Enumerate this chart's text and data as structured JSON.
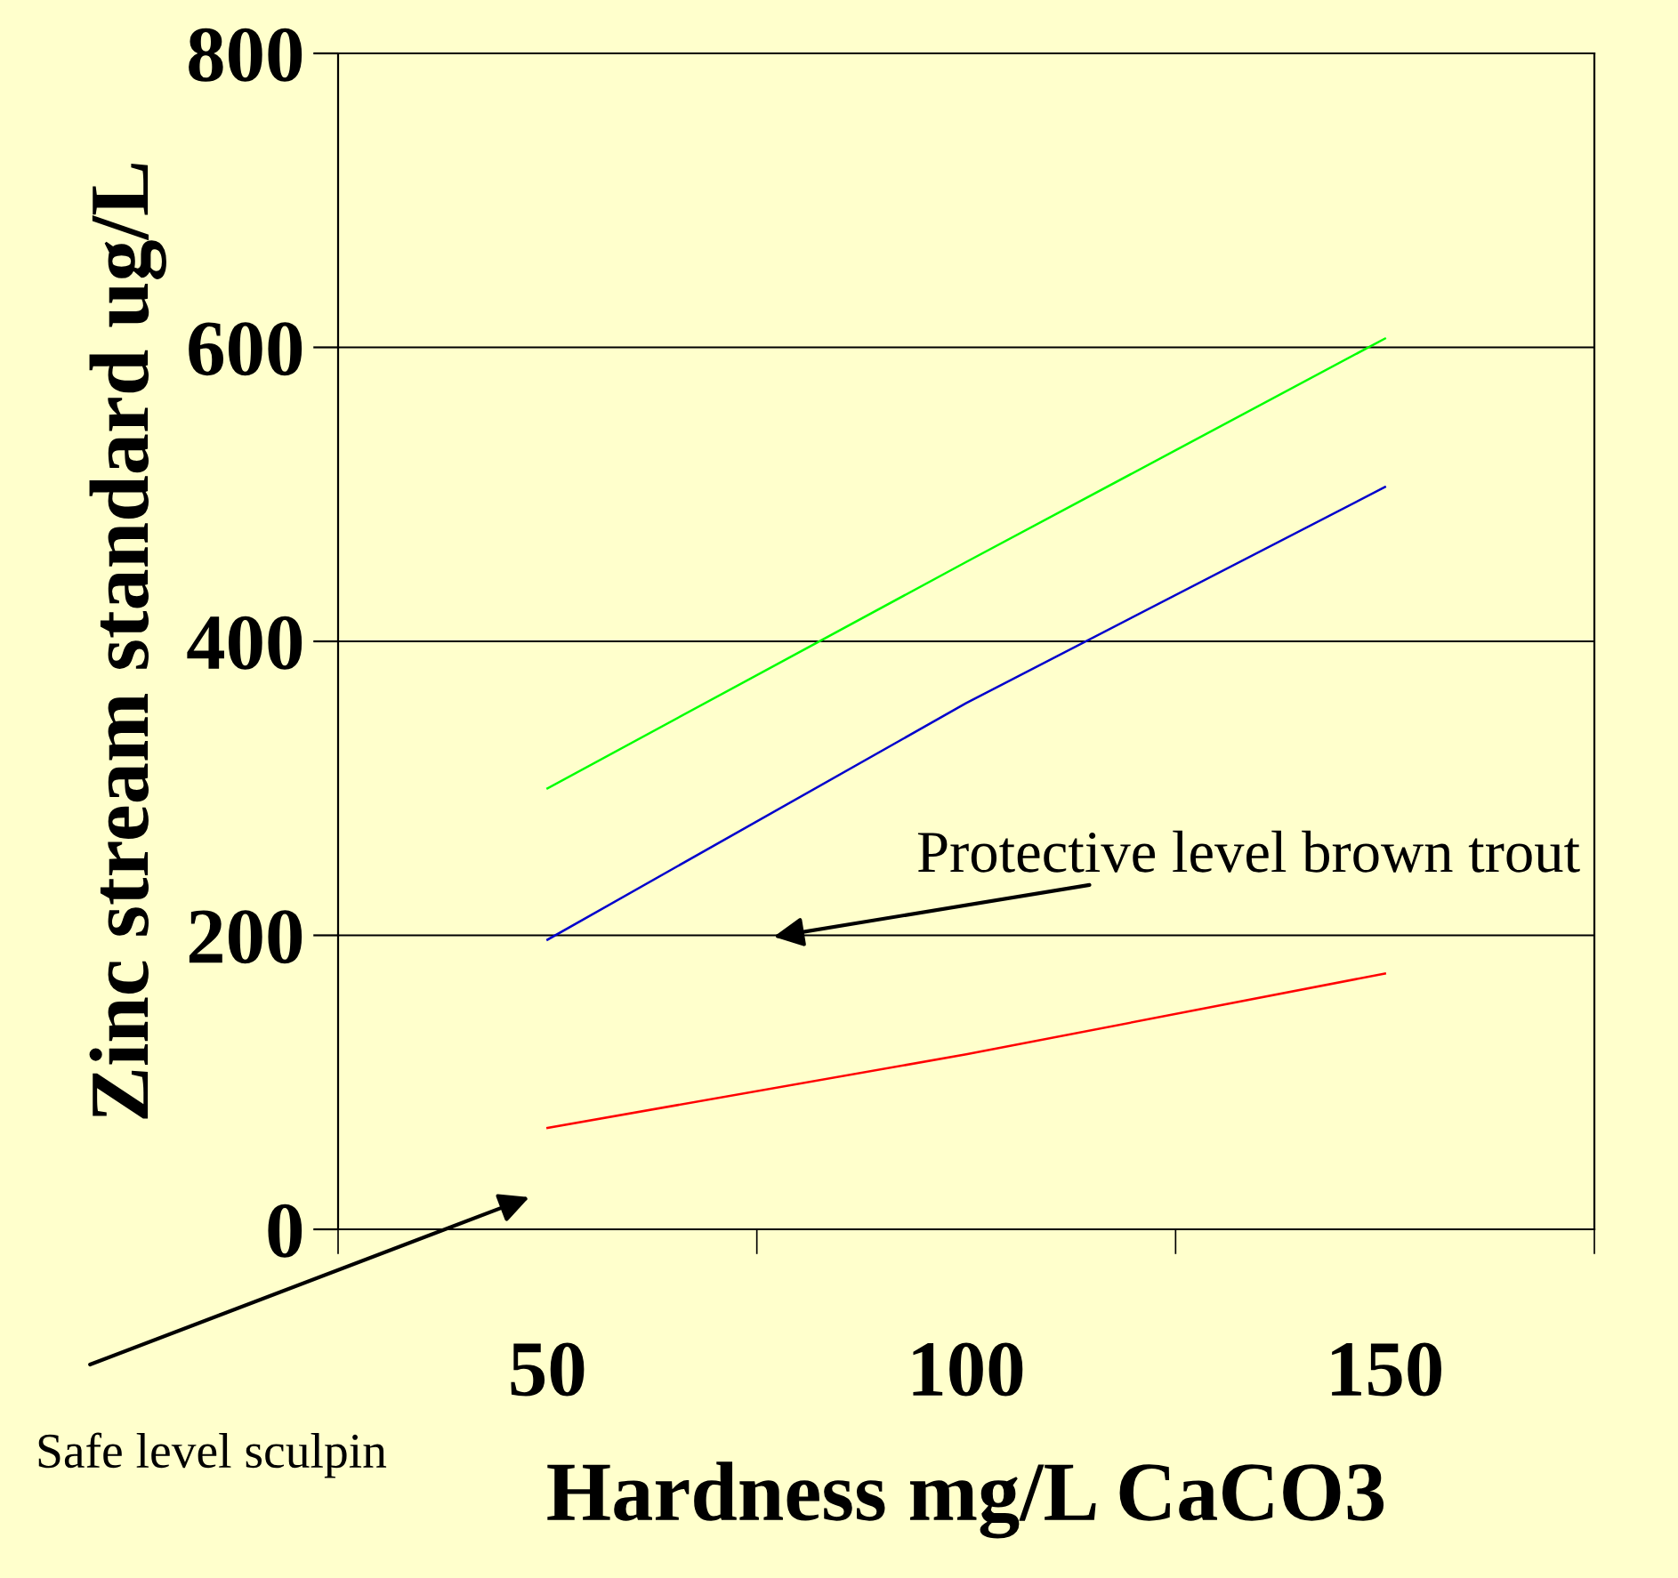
{
  "chart_data": {
    "type": "line",
    "xlabel": "Hardness mg/L CaCO3",
    "ylabel": "Zinc stream standard ug/L",
    "categories": [
      "50",
      "100",
      "150"
    ],
    "series": [
      {
        "color": "#00ff00",
        "values": [
          300,
          454,
          606
        ]
      },
      {
        "color": "#0000cc",
        "values": [
          197,
          358,
          505
        ]
      },
      {
        "color": "#ff0000",
        "values": [
          69,
          119,
          174
        ]
      }
    ],
    "ylim": [
      0,
      800
    ],
    "yticks": [
      0,
      200,
      400,
      600,
      800
    ],
    "grid": "y",
    "legend": false,
    "annotations": [
      "Protective level brown trout",
      "Safe level sculpin"
    ]
  }
}
